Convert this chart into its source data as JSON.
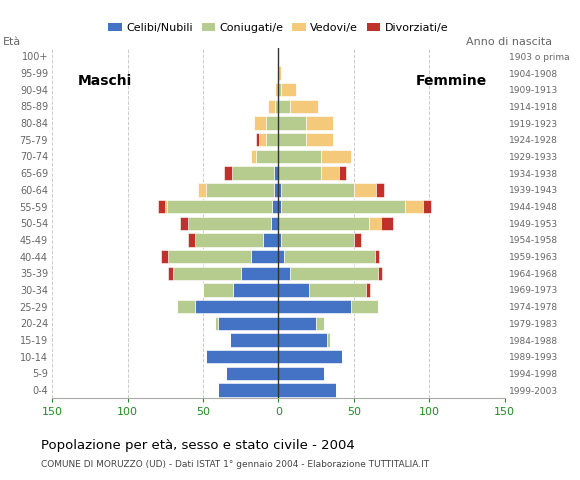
{
  "age_groups": [
    "0-4",
    "5-9",
    "10-14",
    "15-19",
    "20-24",
    "25-29",
    "30-34",
    "35-39",
    "40-44",
    "45-49",
    "50-54",
    "55-59",
    "60-64",
    "65-69",
    "70-74",
    "75-79",
    "80-84",
    "85-89",
    "90-94",
    "95-99",
    "100+"
  ],
  "birth_years": [
    "1999-2003",
    "1994-1998",
    "1989-1993",
    "1984-1988",
    "1979-1983",
    "1974-1978",
    "1969-1973",
    "1964-1968",
    "1959-1963",
    "1954-1958",
    "1949-1953",
    "1944-1948",
    "1939-1943",
    "1934-1938",
    "1929-1933",
    "1924-1928",
    "1919-1923",
    "1914-1918",
    "1909-1913",
    "1904-1908",
    "1903 o prima"
  ],
  "colors": {
    "celibi": "#4472C4",
    "coniugati": "#B5CC8E",
    "vedovi": "#F5C97A",
    "divorziati": "#C0312B"
  },
  "males": {
    "celibi": [
      40,
      35,
      48,
      32,
      40,
      55,
      30,
      25,
      18,
      10,
      5,
      4,
      3,
      3,
      0,
      0,
      0,
      0,
      0,
      0,
      0
    ],
    "coniugati": [
      0,
      0,
      0,
      0,
      2,
      12,
      20,
      45,
      55,
      45,
      55,
      70,
      45,
      28,
      15,
      8,
      8,
      2,
      0,
      0,
      0
    ],
    "vedovi": [
      0,
      0,
      0,
      0,
      0,
      0,
      0,
      0,
      0,
      0,
      0,
      1,
      5,
      0,
      3,
      5,
      8,
      5,
      2,
      0,
      0
    ],
    "divorziati": [
      0,
      0,
      0,
      0,
      0,
      0,
      0,
      3,
      5,
      5,
      5,
      5,
      0,
      5,
      0,
      2,
      0,
      0,
      0,
      0,
      0
    ]
  },
  "females": {
    "nubili": [
      38,
      30,
      42,
      32,
      25,
      48,
      20,
      8,
      4,
      2,
      0,
      2,
      2,
      0,
      0,
      0,
      0,
      0,
      0,
      0,
      0
    ],
    "coniugate": [
      0,
      0,
      0,
      2,
      5,
      18,
      38,
      58,
      60,
      48,
      60,
      82,
      48,
      28,
      28,
      18,
      18,
      8,
      2,
      0,
      0
    ],
    "vedove": [
      0,
      0,
      0,
      0,
      0,
      0,
      0,
      0,
      0,
      0,
      8,
      12,
      15,
      12,
      20,
      18,
      18,
      18,
      10,
      2,
      0
    ],
    "divorziate": [
      0,
      0,
      0,
      0,
      0,
      0,
      3,
      3,
      3,
      5,
      8,
      5,
      5,
      5,
      0,
      0,
      0,
      0,
      0,
      0,
      0
    ]
  },
  "xlim": 150,
  "title": "Popolazione per età, sesso e stato civile - 2004",
  "subtitle": "COMUNE DI MORUZZO (UD) - Dati ISTAT 1° gennaio 2004 - Elaborazione TUTTITALIA.IT",
  "label_maschi": "Maschi",
  "label_femmine": "Femmine",
  "label_eta": "Età",
  "label_anno": "Anno di nascita",
  "legend_labels": [
    "Celibi/Nubili",
    "Coniugati/e",
    "Vedovi/e",
    "Divorziati/e"
  ],
  "xtick_vals": [
    -150,
    -100,
    -50,
    0,
    50,
    100,
    150
  ],
  "xtick_labels": [
    "150",
    "100",
    "50",
    "0",
    "50",
    "100",
    "150"
  ],
  "bar_height": 0.8,
  "grid_color": "#cccccc",
  "center_line_color": "#333333",
  "tick_color_x": "#228B22",
  "tick_color_y": "#888888",
  "bg_color": "#ffffff",
  "title_fontsize": 9,
  "subtitle_fontsize": 6.5,
  "figwidth": 5.8,
  "figheight": 4.8,
  "dpi": 100
}
